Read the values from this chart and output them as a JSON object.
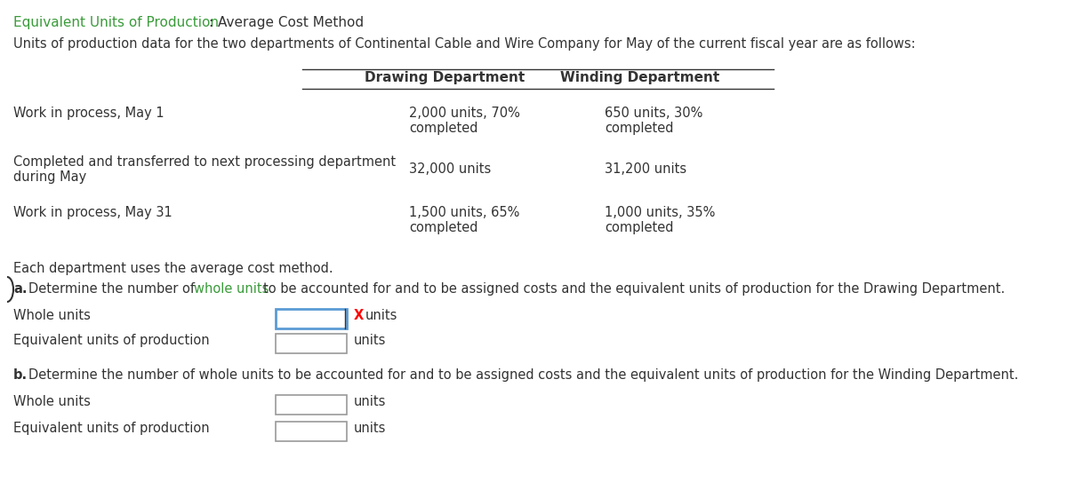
{
  "title_green": "Equivalent Units of Production",
  "title_rest": ": Average Cost Method",
  "subtitle": "Units of production data for the two departments of Continental Cable and Wire Company for May of the current fiscal year are as follows:",
  "col1_header": "Drawing Department",
  "col2_header": "Winding Department",
  "row1_label": "Work in process, May 1",
  "row1_col1_line1": "2,000 units, 70%",
  "row1_col1_line2": "completed",
  "row1_col2_line1": "650 units, 30%",
  "row1_col2_line2": "completed",
  "row2_label_line1": "Completed and transferred to next processing department",
  "row2_label_line2": "during May",
  "row2_col1": "32,000 units",
  "row2_col2": "31,200 units",
  "row3_label": "Work in process, May 31",
  "row3_col1_line1": "1,500 units, 65%",
  "row3_col1_line2": "completed",
  "row3_col2_line1": "1,000 units, 35%",
  "row3_col2_line2": "completed",
  "note": "Each department uses the average cost method.",
  "part_a_row1_label": "Whole units",
  "part_a_row2_label": "Equivalent units of production",
  "part_b_row1_label": "Whole units",
  "part_b_row2_label": "Equivalent units of production",
  "green_color": "#3a9b3a",
  "text_color": "#333333",
  "box_border_color": "#999999",
  "box_highlight_color": "#5b9bd5",
  "font_size": 10.5,
  "header_font_size": 11,
  "title_font_size": 11,
  "fig_width": 12.0,
  "fig_height": 5.52,
  "dpi": 100
}
